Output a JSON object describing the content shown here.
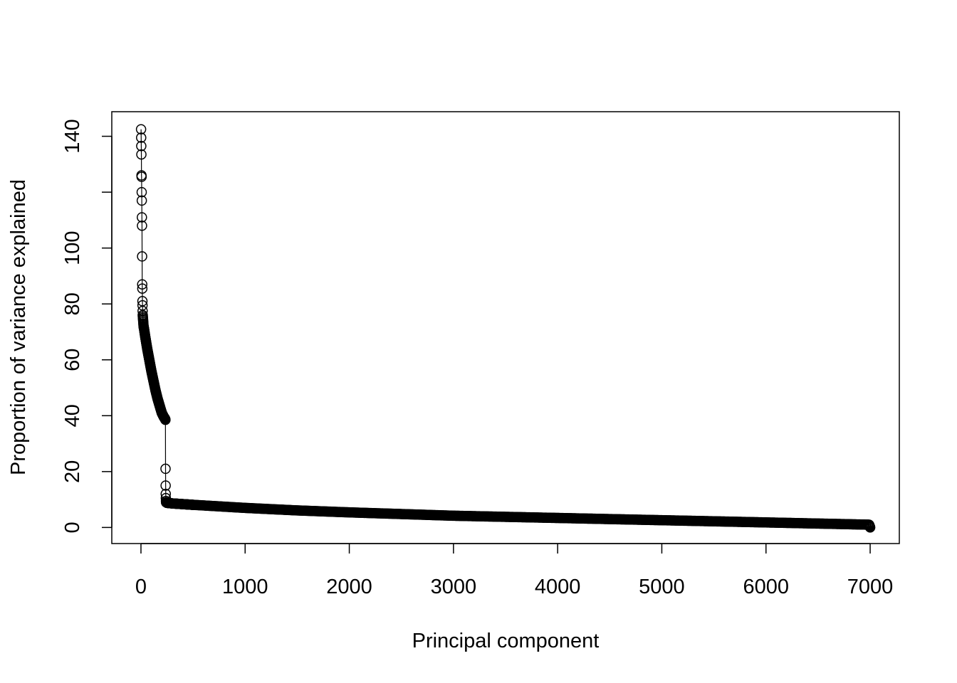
{
  "chart_data": {
    "type": "scatter",
    "title": "",
    "xlabel": "Principal component",
    "ylabel": "Proportion of variance explained",
    "xlim": [
      -280,
      7280
    ],
    "ylim": [
      -5.76,
      148.8
    ],
    "x_ticks": [
      0,
      1000,
      2000,
      3000,
      4000,
      5000,
      6000,
      7000
    ],
    "x_tick_labels": [
      "0",
      "1000",
      "2000",
      "3000",
      "4000",
      "5000",
      "6000",
      "7000"
    ],
    "y_ticks": [
      0,
      20,
      40,
      60,
      80,
      100,
      120,
      140
    ],
    "y_tick_labels": [
      "0",
      "20",
      "40",
      "60",
      "80",
      "100",
      "",
      "140"
    ],
    "grid": false,
    "legend": "none",
    "marker": "open-circle",
    "line_style": "type-b (points joined by line segments)",
    "color": "#000000",
    "n_points": 7000,
    "series": [
      {
        "x": [
          1,
          2,
          3,
          4,
          5,
          6,
          7,
          8,
          9,
          10,
          11,
          12,
          13,
          14,
          15,
          16,
          17,
          18,
          19,
          20,
          21,
          22,
          23,
          24,
          25,
          30,
          40,
          60,
          80,
          100,
          120,
          140,
          160,
          180,
          200,
          220,
          230,
          235,
          236,
          237,
          238,
          239,
          240,
          241,
          250,
          300,
          500,
          1000,
          1500,
          2000,
          2500,
          3000,
          3500,
          4000,
          4500,
          5000,
          5500,
          6000,
          6500,
          6990,
          6995,
          7000
        ],
        "y": [
          142.5,
          139.5,
          136.5,
          133.5,
          126,
          125.5,
          120,
          117,
          111,
          108,
          97,
          87,
          85.5,
          81,
          79.5,
          77.5,
          76,
          75.5,
          75,
          74.5,
          74,
          73.5,
          73,
          72.5,
          72,
          71,
          68.5,
          64,
          60,
          56,
          52.5,
          49,
          46,
          43.5,
          41,
          39.5,
          39,
          38.5,
          21,
          15,
          12,
          10.5,
          9.5,
          9,
          8.8,
          8.6,
          8.1,
          7.0,
          6.1,
          5.4,
          4.8,
          4.2,
          3.8,
          3.4,
          3.0,
          2.6,
          2.2,
          1.8,
          1.4,
          1.0,
          0.5,
          0.0
        ]
      }
    ]
  }
}
